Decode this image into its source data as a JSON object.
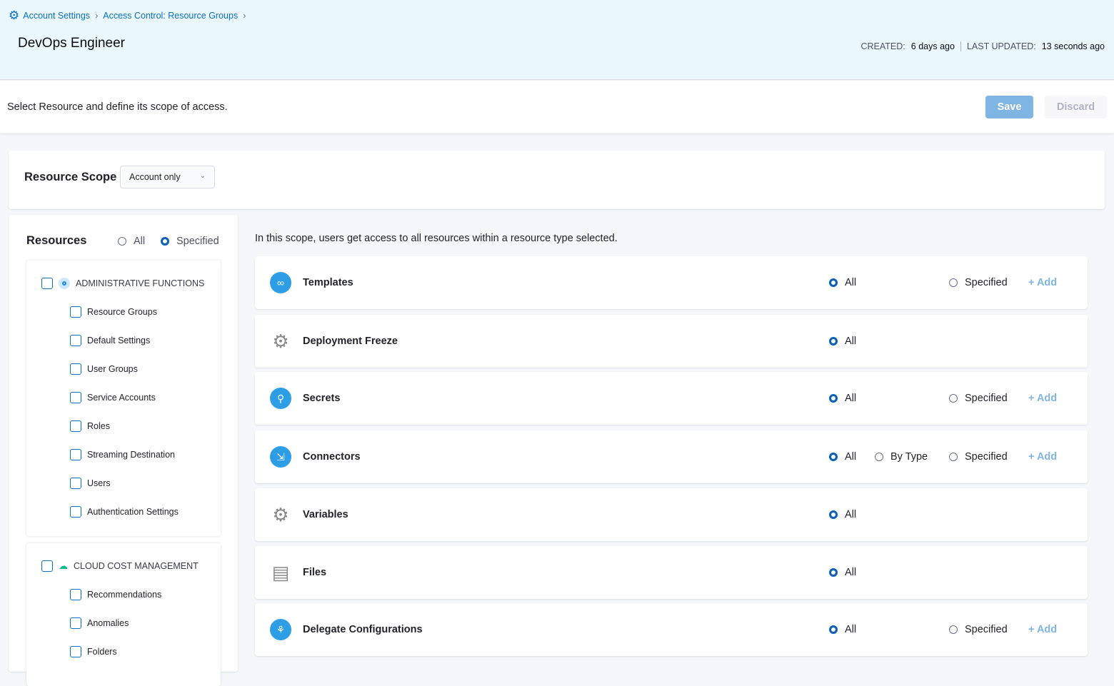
{
  "breadcrumb": [
    "Account Settings",
    "Access Control: Resource Groups"
  ],
  "title": "DevOps Engineer",
  "meta": {
    "created_label": "CREATED:",
    "created": "6 days ago",
    "updated_label": "LAST UPDATED:",
    "updated": "13 seconds ago"
  },
  "toolbar": {
    "description": "Select Resource and define its scope of access.",
    "save": "Save",
    "discard": "Discard"
  },
  "scope": {
    "label": "Resource Scope",
    "value": "Account only"
  },
  "resources": {
    "title": "Resources",
    "all": "All",
    "specified": "Specified",
    "selected": "Specified"
  },
  "groups": [
    {
      "name": "ADMINISTRATIVE FUNCTIONS",
      "items": [
        "Resource Groups",
        "Default Settings",
        "User Groups",
        "Service Accounts",
        "Roles",
        "Streaming Destination",
        "Users",
        "Authentication Settings"
      ]
    },
    {
      "name": "CLOUD COST MANAGEMENT",
      "items": [
        "Recommendations",
        "Anomalies",
        "Folders"
      ]
    }
  ],
  "info": "In this scope, users get access to all resources within a resource type selected.",
  "labels": {
    "all": "All",
    "by_type": "By Type",
    "specified": "Specified",
    "add": "+ Add"
  },
  "resource_types": [
    {
      "name": "Templates",
      "icon": "templates-icon",
      "options": [
        "all",
        "specified"
      ],
      "selected": "all"
    },
    {
      "name": "Deployment Freeze",
      "icon": "gear-icon",
      "options": [
        "all"
      ],
      "selected": "all"
    },
    {
      "name": "Secrets",
      "icon": "key-icon",
      "options": [
        "all",
        "specified"
      ],
      "selected": "all"
    },
    {
      "name": "Connectors",
      "icon": "connector-icon",
      "options": [
        "all",
        "by_type",
        "specified"
      ],
      "selected": "all"
    },
    {
      "name": "Variables",
      "icon": "variables-icon",
      "options": [
        "all"
      ],
      "selected": "all"
    },
    {
      "name": "Files",
      "icon": "file-icon",
      "options": [
        "all"
      ],
      "selected": "all"
    },
    {
      "name": "Delegate Configurations",
      "icon": "delegate-icon",
      "options": [
        "all",
        "specified"
      ],
      "selected": "all"
    }
  ],
  "colors": {
    "accent": "#0b6fc6",
    "header_bg": "#eaf8fe",
    "radio_selected": "#0b5fb8"
  }
}
